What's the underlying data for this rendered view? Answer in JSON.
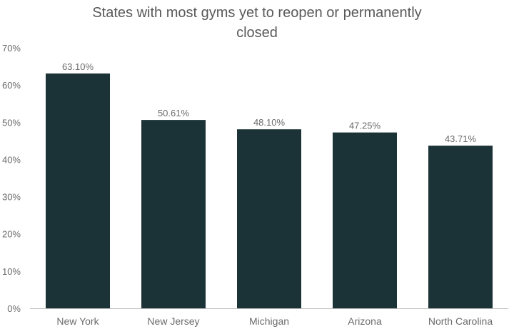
{
  "chart_data": {
    "type": "bar",
    "title_lines": [
      "States with most gyms yet to reopen or permanently",
      "closed"
    ],
    "categories": [
      "New York",
      "New Jersey",
      "Michigan",
      "Arizona",
      "North Carolina"
    ],
    "values": [
      63.1,
      50.61,
      48.1,
      47.25,
      43.71
    ],
    "value_labels": [
      "63.10%",
      "50.61%",
      "48.10%",
      "47.25%",
      "43.71%"
    ],
    "ylim": [
      0,
      70
    ],
    "yticks": [
      0,
      10,
      20,
      30,
      40,
      50,
      60,
      70
    ],
    "ytick_labels": [
      "0%",
      "10%",
      "20%",
      "30%",
      "40%",
      "50%",
      "60%",
      "70%"
    ],
    "grid": false,
    "legend": "none",
    "bar_color": "#1b3236",
    "axis_color": "#bfbfbf",
    "text_color": "#6b6b6b"
  }
}
